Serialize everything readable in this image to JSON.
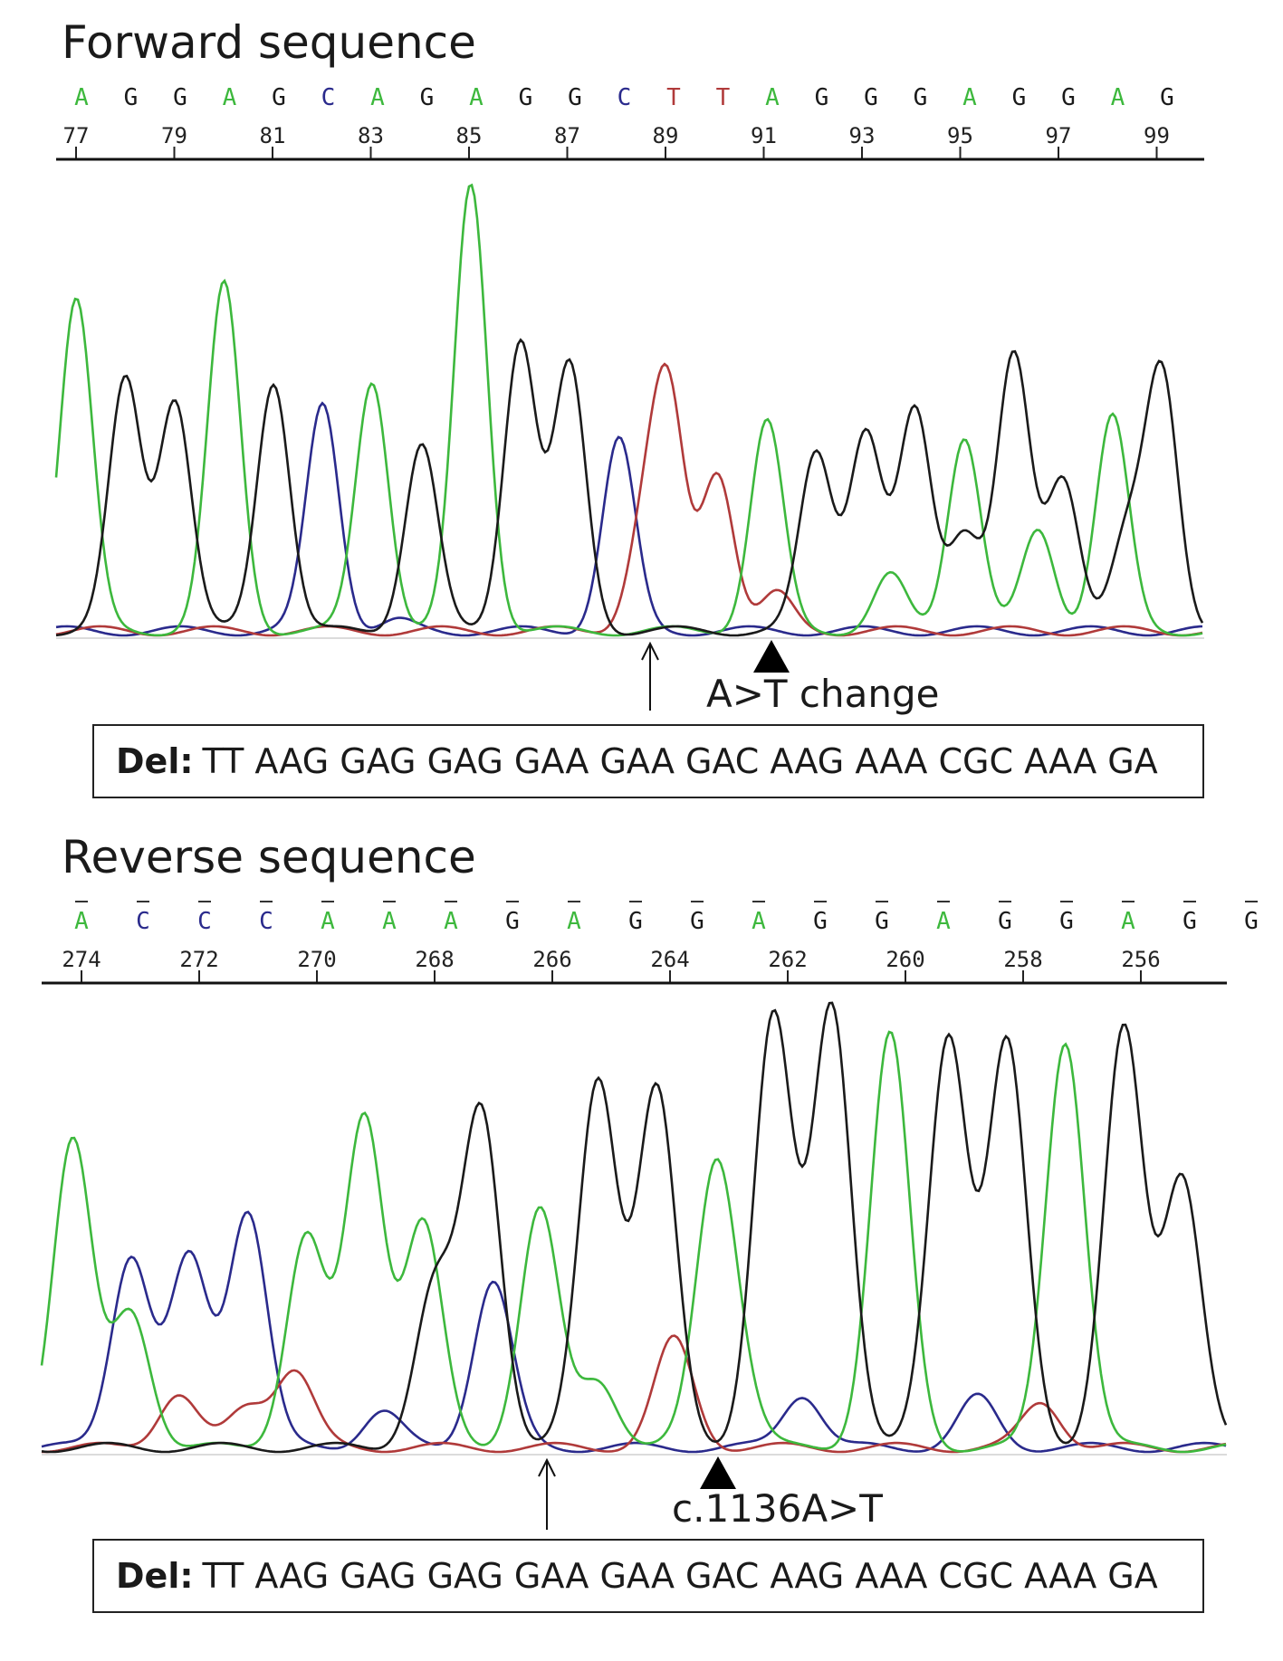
{
  "colors": {
    "A": "#3db83d",
    "C": "#2a2a8c",
    "G": "#1a1a1a",
    "T": "#b03a3a"
  },
  "forward": {
    "title": "Forward sequence",
    "bases": [
      "A",
      "G",
      "G",
      "A",
      "G",
      "C",
      "A",
      "G",
      "A",
      "G",
      "G",
      "C",
      "T",
      "T",
      "A",
      "G",
      "G",
      "G",
      "A",
      "G",
      "G",
      "A",
      "G"
    ],
    "positions": [
      "77",
      "79",
      "81",
      "83",
      "85",
      "87",
      "89",
      "91",
      "93",
      "95",
      "97",
      "99"
    ],
    "mutation_label": "A>T change",
    "deletion_prefix": "Del:",
    "deletion_sequence": "TT AAG GAG GAG GAA GAA GAC AAG AAA CGC AAA GA"
  },
  "reverse": {
    "title": "Reverse sequence",
    "bases": [
      "A",
      "C",
      "C",
      "C",
      "A",
      "A",
      "A",
      "G",
      "A",
      "G",
      "G",
      "A",
      "G",
      "G",
      "A",
      "G",
      "G",
      "A",
      "G",
      "G"
    ],
    "positions": [
      "274",
      "272",
      "270",
      "268",
      "266",
      "264",
      "262",
      "260",
      "258",
      "256"
    ],
    "mutation_label": "c.1136A>T",
    "deletion_prefix": "Del:",
    "deletion_sequence": "TT AAG GAG GAG GAA GAA GAC AAG AAA CGC AAA GA"
  }
}
